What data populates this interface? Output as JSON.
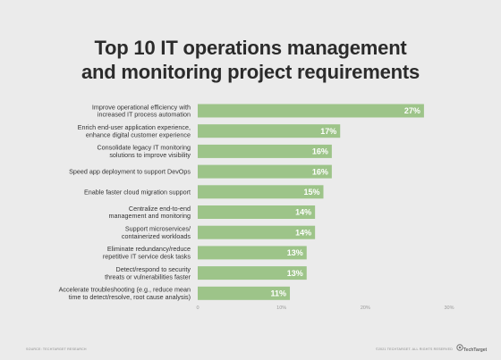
{
  "chart_data": {
    "type": "bar",
    "orientation": "horizontal",
    "title_lines": [
      "Top 10 IT operations management",
      "and monitoring project requirements"
    ],
    "categories": [
      [
        "Improve operational efficiency with",
        "increased IT process automation"
      ],
      [
        "Enrich end-user application experience,",
        "enhance digital customer experience"
      ],
      [
        "Consolidate legacy IT monitoring",
        "solutions to improve visibility"
      ],
      [
        "Speed app deployment to support DevOps"
      ],
      [
        "Enable faster cloud migration support"
      ],
      [
        "Centralize end-to-end",
        "management and monitoring"
      ],
      [
        "Support microservices/",
        "containerized workloads"
      ],
      [
        "Eliminate redundancy/reduce",
        "repetitive IT service desk tasks"
      ],
      [
        "Detect/respond to security",
        "threats or vulnerabilities faster"
      ],
      [
        "Accelerate troubleshooting (e.g., reduce mean",
        "time to detect/resolve, root cause analysis)"
      ]
    ],
    "values": [
      27,
      17,
      16,
      16,
      15,
      14,
      14,
      13,
      13,
      11
    ],
    "value_labels": [
      "27%",
      "17%",
      "16%",
      "16%",
      "15%",
      "14%",
      "14%",
      "13%",
      "13%",
      "11%"
    ],
    "xlim": [
      0,
      30
    ],
    "ticks": [
      0,
      10,
      20,
      30
    ],
    "tick_labels": [
      "0",
      "10%",
      "20%",
      "30%"
    ],
    "grid": false,
    "bar_color": "#9dc489"
  },
  "footer": {
    "source": "SOURCE: TECHTARGET RESEARCH",
    "copyright": "©2021 TECHTARGET. ALL RIGHTS RESERVED",
    "brand": "TechTarget"
  },
  "colors": {
    "background": "#ebebeb",
    "title": "#2b2b2b",
    "bar": "#9dc489"
  }
}
